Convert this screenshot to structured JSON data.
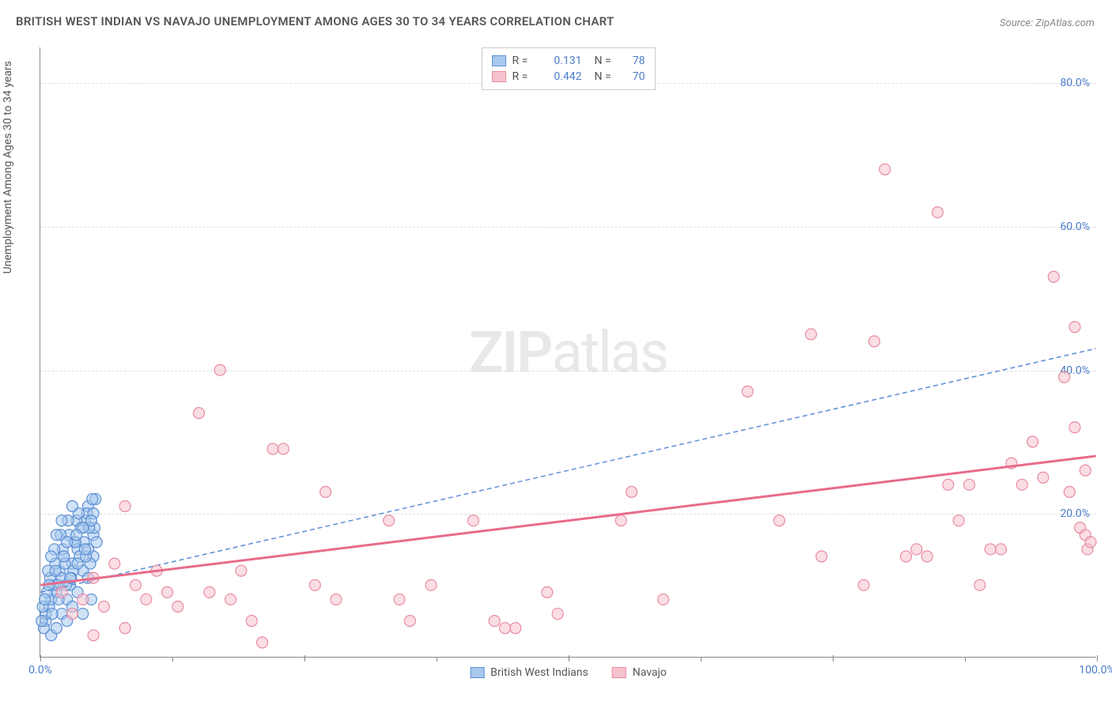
{
  "title": "BRITISH WEST INDIAN VS NAVAJO UNEMPLOYMENT AMONG AGES 30 TO 34 YEARS CORRELATION CHART",
  "source": "Source: ZipAtlas.com",
  "ylabel": "Unemployment Among Ages 30 to 34 years",
  "watermark_bold": "ZIP",
  "watermark_light": "atlas",
  "chart": {
    "type": "scatter",
    "xlim": [
      0,
      100
    ],
    "ylim": [
      0,
      85
    ],
    "ytick_positions": [
      20,
      40,
      60,
      80
    ],
    "ytick_labels": [
      "20.0%",
      "40.0%",
      "60.0%",
      "80.0%"
    ],
    "xtick_positions": [
      0,
      25,
      50,
      75,
      100
    ],
    "xtick_labels": [
      "0.0%",
      "",
      "",
      "",
      "100.0%"
    ],
    "xsubtick_positions": [
      12.5,
      37.5,
      62.5,
      87.5
    ],
    "background_color": "#ffffff",
    "grid_color": "#dddddd",
    "axis_color": "#888888",
    "tick_label_color": "#4a7bc8",
    "series": [
      {
        "name": "British West Indians",
        "marker_fill": "#a8c8ec",
        "marker_stroke": "#5b8fd4",
        "line_stroke": "#5b8fd4",
        "line_dash": "6,4",
        "line_width": 1.5,
        "r": "0.131",
        "n": "78",
        "regression": {
          "x1": 0,
          "y1": 9,
          "x2": 100,
          "y2": 43
        },
        "points": [
          [
            0.5,
            5
          ],
          [
            0.5,
            6
          ],
          [
            0.8,
            7
          ],
          [
            1,
            3
          ],
          [
            1,
            8
          ],
          [
            1.2,
            10
          ],
          [
            1.5,
            4
          ],
          [
            1.5,
            9
          ],
          [
            1.8,
            12
          ],
          [
            2,
            6
          ],
          [
            2,
            11
          ],
          [
            2.2,
            14
          ],
          [
            2.5,
            5
          ],
          [
            2.5,
            8
          ],
          [
            2.8,
            10
          ],
          [
            3,
            7
          ],
          [
            3,
            13
          ],
          [
            3.2,
            16
          ],
          [
            3.5,
            9
          ],
          [
            3.5,
            15
          ],
          [
            3.8,
            18
          ],
          [
            4,
            6
          ],
          [
            4,
            12
          ],
          [
            4.2,
            19
          ],
          [
            4.5,
            11
          ],
          [
            4.5,
            21
          ],
          [
            4.8,
            8
          ],
          [
            5,
            14
          ],
          [
            5,
            17
          ],
          [
            5.2,
            22
          ],
          [
            0.3,
            4
          ],
          [
            0.6,
            9
          ],
          [
            0.9,
            11
          ],
          [
            1.1,
            6
          ],
          [
            1.4,
            13
          ],
          [
            1.7,
            8
          ],
          [
            2.1,
            15
          ],
          [
            2.4,
            10
          ],
          [
            2.7,
            17
          ],
          [
            3.1,
            12
          ],
          [
            3.4,
            19
          ],
          [
            3.7,
            14
          ],
          [
            4.1,
            16
          ],
          [
            4.4,
            20
          ],
          [
            4.7,
            13
          ],
          [
            5.1,
            18
          ],
          [
            0.2,
            7
          ],
          [
            0.7,
            12
          ],
          [
            1.3,
            15
          ],
          [
            1.6,
            10
          ],
          [
            1.9,
            17
          ],
          [
            2.3,
            13
          ],
          [
            2.6,
            19
          ],
          [
            2.9,
            11
          ],
          [
            3.3,
            16
          ],
          [
            3.6,
            20
          ],
          [
            4.3,
            14
          ],
          [
            4.6,
            18
          ],
          [
            4.9,
            22
          ],
          [
            0.4,
            8
          ],
          [
            1.0,
            14
          ],
          [
            1.5,
            17
          ],
          [
            2.0,
            19
          ],
          [
            2.5,
            16
          ],
          [
            3.0,
            21
          ],
          [
            3.5,
            13
          ],
          [
            4.0,
            18
          ],
          [
            4.5,
            15
          ],
          [
            5.0,
            20
          ],
          [
            0.1,
            5
          ],
          [
            0.8,
            10
          ],
          [
            1.4,
            12
          ],
          [
            2.2,
            14
          ],
          [
            2.8,
            11
          ],
          [
            3.4,
            17
          ],
          [
            4.2,
            15
          ],
          [
            4.8,
            19
          ],
          [
            5.3,
            16
          ]
        ]
      },
      {
        "name": "Navajo",
        "marker_fill": "#f5c2cd",
        "marker_stroke": "#e88ba0",
        "line_stroke": "#e86b8a",
        "line_dash": "none",
        "line_width": 3,
        "r": "0.442",
        "n": "70",
        "regression": {
          "x1": 0,
          "y1": 10,
          "x2": 100,
          "y2": 28
        },
        "points": [
          [
            2,
            9
          ],
          [
            3,
            6
          ],
          [
            4,
            8
          ],
          [
            5,
            11
          ],
          [
            6,
            7
          ],
          [
            7,
            13
          ],
          [
            8,
            21
          ],
          [
            9,
            10
          ],
          [
            10,
            8
          ],
          [
            11,
            12
          ],
          [
            12,
            9
          ],
          [
            13,
            7
          ],
          [
            15,
            34
          ],
          [
            16,
            9
          ],
          [
            17,
            40
          ],
          [
            18,
            8
          ],
          [
            19,
            12
          ],
          [
            20,
            5
          ],
          [
            21,
            2
          ],
          [
            22,
            29
          ],
          [
            23,
            29
          ],
          [
            26,
            10
          ],
          [
            27,
            23
          ],
          [
            28,
            8
          ],
          [
            33,
            19
          ],
          [
            34,
            8
          ],
          [
            35,
            5
          ],
          [
            37,
            10
          ],
          [
            41,
            19
          ],
          [
            43,
            5
          ],
          [
            44,
            4
          ],
          [
            45,
            4
          ],
          [
            48,
            9
          ],
          [
            49,
            6
          ],
          [
            55,
            19
          ],
          [
            56,
            23
          ],
          [
            59,
            8
          ],
          [
            67,
            37
          ],
          [
            70,
            19
          ],
          [
            73,
            45
          ],
          [
            74,
            14
          ],
          [
            78,
            10
          ],
          [
            79,
            44
          ],
          [
            80,
            68
          ],
          [
            82,
            14
          ],
          [
            83,
            15
          ],
          [
            84,
            14
          ],
          [
            85,
            62
          ],
          [
            86,
            24
          ],
          [
            87,
            19
          ],
          [
            88,
            24
          ],
          [
            89,
            10
          ],
          [
            90,
            15
          ],
          [
            91,
            15
          ],
          [
            92,
            27
          ],
          [
            93,
            24
          ],
          [
            94,
            30
          ],
          [
            95,
            25
          ],
          [
            96,
            53
          ],
          [
            97,
            39
          ],
          [
            97.5,
            23
          ],
          [
            98,
            46
          ],
          [
            98,
            32
          ],
          [
            98.5,
            18
          ],
          [
            99,
            17
          ],
          [
            99,
            26
          ],
          [
            99.2,
            15
          ],
          [
            99.5,
            16
          ],
          [
            5,
            3
          ],
          [
            8,
            4
          ]
        ]
      }
    ]
  },
  "bottom_legend": [
    {
      "label": "British West Indians",
      "fill": "#a8c8ec",
      "stroke": "#5b8fd4"
    },
    {
      "label": "Navajo",
      "fill": "#f5c2cd",
      "stroke": "#e88ba0"
    }
  ]
}
